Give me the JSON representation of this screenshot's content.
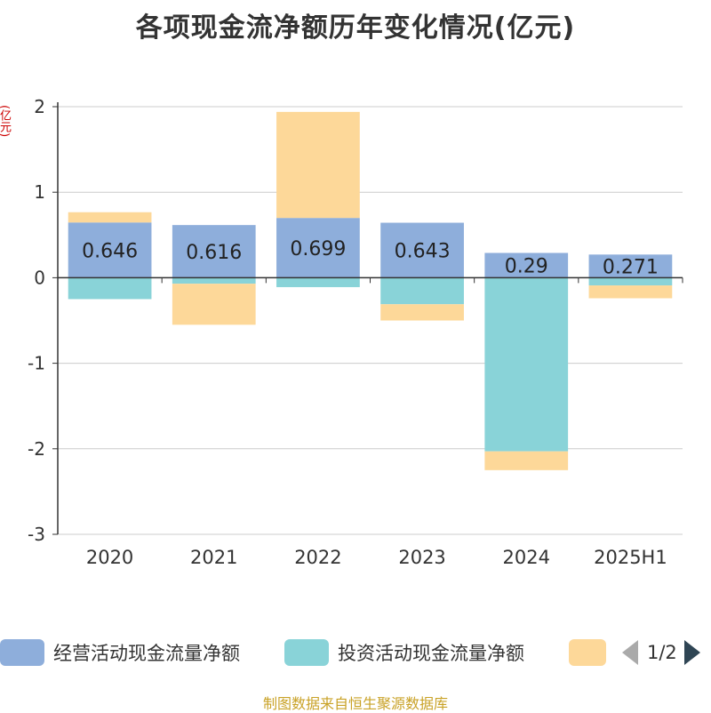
{
  "title": "各项现金流净额历年变化情况(亿元)",
  "unit_label": "(亿元)",
  "source": "制图数据来自恒生聚源数据库",
  "legend": {
    "items": [
      {
        "label": "经营活动现金流量净额",
        "color": "#8eaedb"
      },
      {
        "label": "投资活动现金流量净额",
        "color": "#89d3d8"
      },
      {
        "label": "",
        "color": "#fdd899"
      }
    ],
    "page": "1/2"
  },
  "chart_data": {
    "type": "bar",
    "stacked": true,
    "categories": [
      "2020",
      "2021",
      "2022",
      "2023",
      "2024",
      "2025H1"
    ],
    "ylim": [
      -3,
      2
    ],
    "yticks": [
      2,
      1,
      0,
      -1,
      -2,
      -3
    ],
    "grid": true,
    "series": [
      {
        "name": "经营活动现金流量净额",
        "color": "#8eaedb",
        "values": [
          0.646,
          0.616,
          0.699,
          0.643,
          0.29,
          0.271
        ],
        "labels": [
          "0.646",
          "0.616",
          "0.699",
          "0.643",
          "0.29",
          "0.271"
        ]
      },
      {
        "name": "投资活动现金流量净额",
        "color": "#89d3d8",
        "values": [
          -0.25,
          -0.07,
          -0.11,
          -0.31,
          -2.03,
          -0.09
        ]
      },
      {
        "color": "#fdd899",
        "values": [
          0.12,
          -0.48,
          1.24,
          -0.19,
          -0.22,
          -0.15
        ]
      }
    ]
  }
}
